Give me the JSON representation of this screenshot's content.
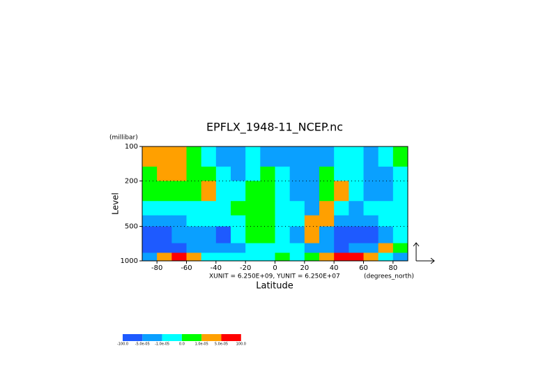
{
  "chart_data": {
    "type": "contour",
    "title": "EPFLX_1948-11_NCEP.nc",
    "y_unit": "(millibar)",
    "ylabel": "Level",
    "xlabel": "Latitude",
    "x_unit": "(degrees_north)",
    "vector_scale": "XUNIT = 6.250E+09, YUNIT = 6.250E+07",
    "xlim": [
      -90,
      90
    ],
    "ylim": [
      1000,
      100
    ],
    "ylog": true,
    "xticks": [
      -80,
      -60,
      -40,
      -20,
      0,
      20,
      40,
      60,
      80
    ],
    "yticks": [
      100,
      200,
      500,
      1000
    ],
    "lat_edges": [
      -90,
      -80,
      -70,
      -60,
      -50,
      -40,
      -30,
      -20,
      -10,
      0,
      10,
      20,
      30,
      40,
      50,
      60,
      70,
      80,
      90
    ],
    "level_edges": [
      100,
      150,
      200,
      300,
      400,
      500,
      700,
      850,
      1000
    ],
    "values": [
      [
        3e-05,
        3e-05,
        3e-05,
        5e-06,
        -5e-06,
        -3e-05,
        -3e-05,
        -5e-06,
        -3e-05,
        -3e-05,
        -3e-05,
        -3e-05,
        -3e-05,
        -5e-06,
        -5e-06,
        -3e-05,
        -5e-06,
        5e-06
      ],
      [
        5e-06,
        3e-05,
        3e-05,
        5e-06,
        5e-06,
        -5e-06,
        -3e-05,
        -5e-06,
        5e-06,
        -5e-06,
        -3e-05,
        -3e-05,
        5e-06,
        -5e-06,
        -5e-06,
        -3e-05,
        -3e-05,
        -5e-06
      ],
      [
        5e-06,
        5e-06,
        5e-06,
        5e-06,
        3e-05,
        -5e-06,
        -5e-06,
        5e-06,
        5e-06,
        -5e-06,
        -3e-05,
        -3e-05,
        5e-06,
        3e-05,
        -5e-06,
        -3e-05,
        -3e-05,
        -5e-06
      ],
      [
        -5e-06,
        -5e-06,
        -5e-06,
        -5e-06,
        -5e-06,
        -5e-06,
        5e-06,
        5e-06,
        5e-06,
        -5e-06,
        -5e-06,
        -3e-05,
        3e-05,
        -5e-06,
        -3e-05,
        -5e-06,
        -5e-06,
        -5e-06
      ],
      [
        -3e-05,
        -3e-05,
        -3e-05,
        -5e-06,
        -5e-06,
        -5e-06,
        -5e-06,
        5e-06,
        5e-06,
        -5e-06,
        -5e-06,
        3e-05,
        3e-05,
        -3e-05,
        -3e-05,
        -3e-05,
        -5e-06,
        -5e-06
      ],
      [
        -8e-05,
        -8e-05,
        -3e-05,
        -3e-05,
        -3e-05,
        -8e-05,
        -5e-06,
        5e-06,
        5e-06,
        -5e-06,
        -3e-05,
        3e-05,
        -3e-05,
        -8e-05,
        -8e-05,
        -8e-05,
        -3e-05,
        -5e-06
      ],
      [
        -8e-05,
        -8e-05,
        -8e-05,
        -3e-05,
        -3e-05,
        -3e-05,
        -3e-05,
        -5e-06,
        -5e-06,
        -5e-06,
        -5e-06,
        -3e-05,
        -3e-05,
        -8e-05,
        -3e-05,
        -3e-05,
        3e-05,
        5e-06
      ],
      [
        -3e-05,
        3e-05,
        8e-05,
        3e-05,
        -5e-06,
        -5e-06,
        -5e-06,
        -5e-06,
        -5e-06,
        5e-06,
        -5e-06,
        5e-06,
        3e-05,
        8e-05,
        8e-05,
        3e-05,
        -5e-06,
        -3e-05
      ]
    ],
    "levels": [
      {
        "value": -100,
        "label": "-100.0"
      },
      {
        "value": -5e-05,
        "label": "-5.0e-05"
      },
      {
        "value": -1e-05,
        "label": "-1.0e-05"
      },
      {
        "value": 0,
        "label": "0.0"
      },
      {
        "value": 1e-05,
        "label": "1.0e-05"
      },
      {
        "value": 5e-05,
        "label": "5.0e-05"
      },
      {
        "value": 100,
        "label": "100.0"
      }
    ],
    "level_colors": [
      "#1e5aff",
      "#0aa0ff",
      "#00ffff",
      "#00ff00",
      "#ffa000",
      "#ff0000"
    ]
  }
}
